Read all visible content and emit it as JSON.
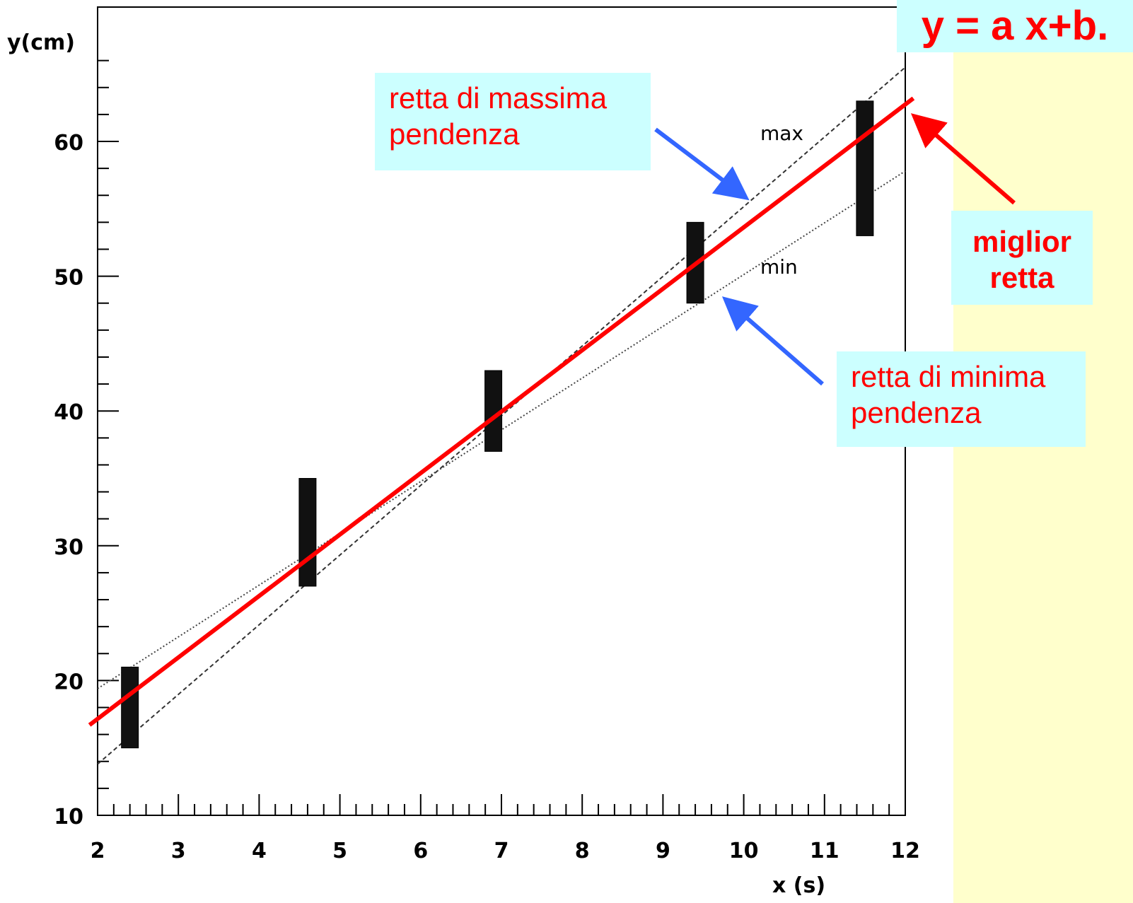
{
  "equation": "y = a x+b.",
  "callouts": {
    "max_slope": [
      "retta di massima",
      "pendenza"
    ],
    "min_slope": [
      "retta di minima",
      "pendenza"
    ],
    "best_line": [
      "miglior",
      "retta"
    ]
  },
  "line_labels": {
    "max": "max",
    "min": "min"
  },
  "colors": {
    "best_fit": "#ff0000",
    "arrow_blue": "#3366ff",
    "callout_bg": "#ccffff",
    "page_bg": "#ffffcc"
  },
  "chart_data": {
    "type": "scatter",
    "xlabel": "x (s)",
    "ylabel": "y(cm)",
    "xlim": [
      2,
      12
    ],
    "ylim": [
      10,
      66
    ],
    "x_ticks": [
      "2",
      "3",
      "4",
      "5",
      "6",
      "7",
      "8",
      "9",
      "10",
      "11",
      "12"
    ],
    "y_ticks": [
      "10",
      "20",
      "30",
      "40",
      "50",
      "60"
    ],
    "points": [
      {
        "x": 2.4,
        "y": 18,
        "ylow": 15,
        "yhigh": 21
      },
      {
        "x": 4.6,
        "y": 31,
        "ylow": 27,
        "yhigh": 35
      },
      {
        "x": 6.9,
        "y": 40,
        "ylow": 37,
        "yhigh": 43
      },
      {
        "x": 9.4,
        "y": 51,
        "ylow": 48,
        "yhigh": 54
      },
      {
        "x": 11.5,
        "y": 58,
        "ylow": 53,
        "yhigh": 63
      }
    ],
    "lines": [
      {
        "name": "max",
        "style": "dashed",
        "p1": [
          2,
          13.8
        ],
        "p2": [
          12,
          65.5
        ]
      },
      {
        "name": "min",
        "style": "dotted",
        "p1": [
          2,
          19.4
        ],
        "p2": [
          12,
          57.8
        ]
      },
      {
        "name": "miglior retta",
        "style": "solid",
        "p1": [
          1.9,
          16.7
        ],
        "p2": [
          12.1,
          63.2
        ]
      }
    ]
  }
}
